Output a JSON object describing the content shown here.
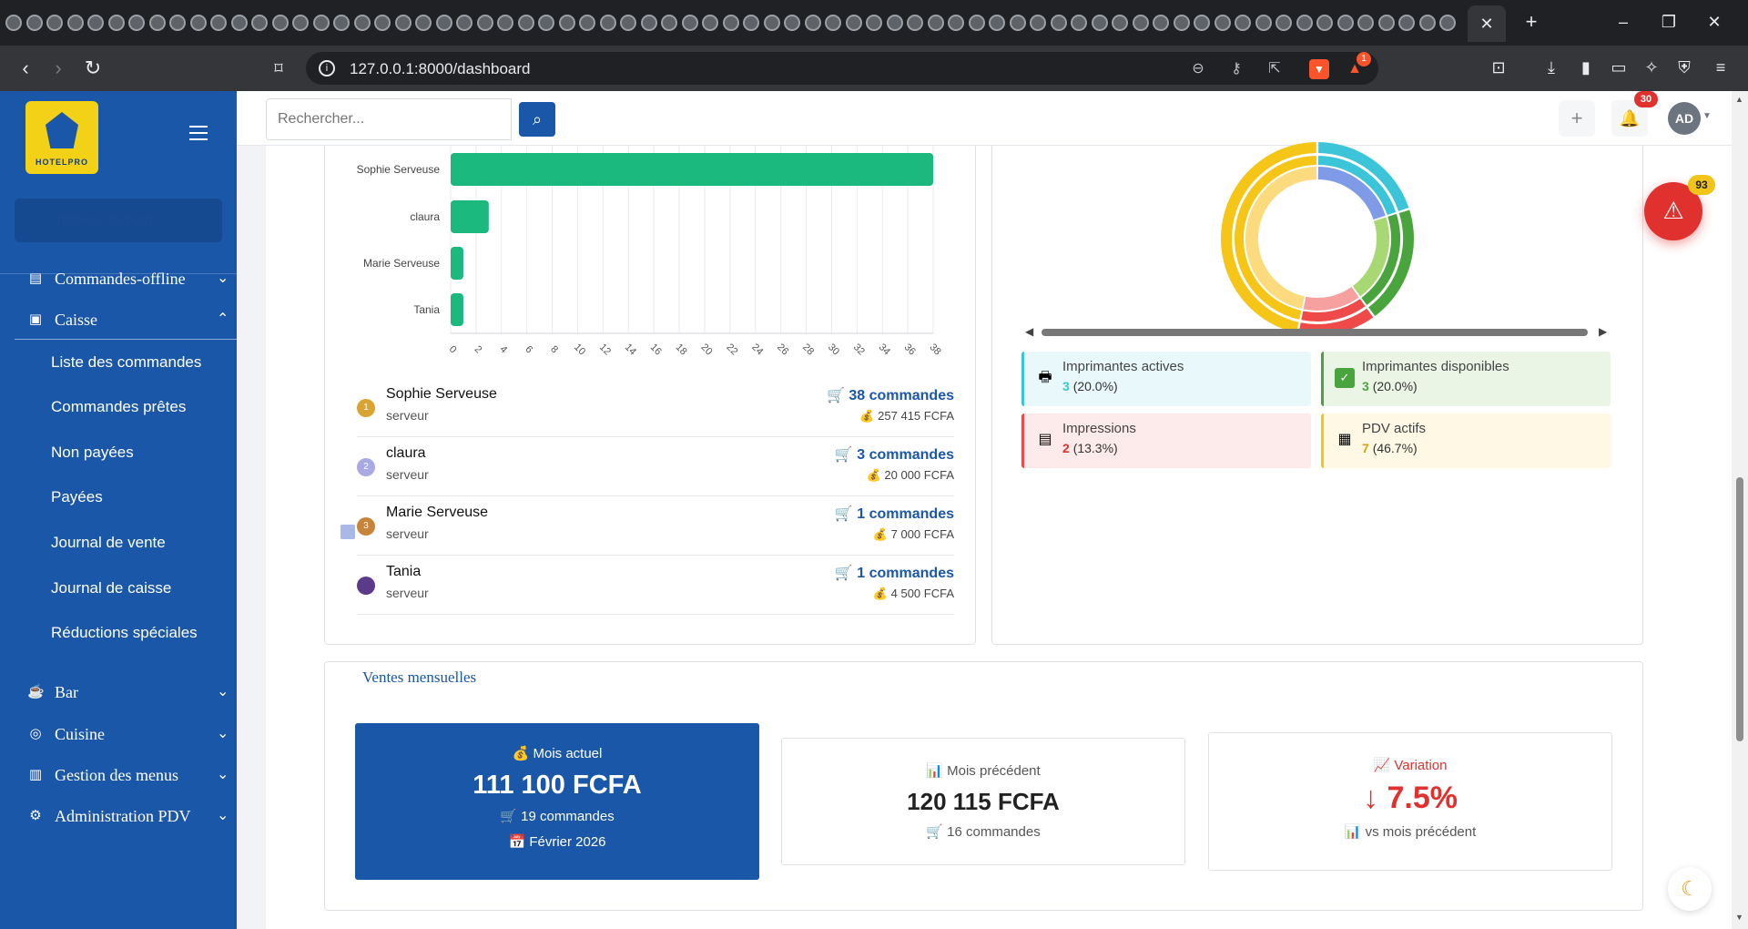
{
  "browser": {
    "url": "127.0.0.1:8000/dashboard",
    "new_tab": "+",
    "close_tab": "✕",
    "brave_badge": "1"
  },
  "sidebar": {
    "logo_text": "HOTELPRO",
    "search_placeholder": "Tableau de bord",
    "items": [
      {
        "label": "Commandes-offline",
        "icon": "list-icon",
        "chevron": "⌄"
      },
      {
        "label": "Caisse",
        "icon": "cash-register-icon",
        "chevron": "⌃"
      },
      {
        "label": "Bar",
        "icon": "coffee-icon",
        "chevron": "⌄"
      },
      {
        "label": "Cuisine",
        "icon": "utensils-icon",
        "chevron": "⌄"
      },
      {
        "label": "Gestion des menus",
        "icon": "menu-book-icon",
        "chevron": "⌄"
      },
      {
        "label": "Administration PDV",
        "icon": "gear-icon",
        "chevron": "⌄"
      }
    ],
    "caisse_subitems": [
      "Liste des commandes",
      "Commandes prêtes",
      "Non payées",
      "Payées",
      "Journal de vente",
      "Journal de caisse",
      "Réductions spéciales"
    ]
  },
  "header": {
    "search_placeholder": "Rechercher...",
    "notification_count": "30",
    "avatar_initials": "AD"
  },
  "alert_fab": {
    "count": "93"
  },
  "ranking": [
    {
      "name": "Sophie Serveuse",
      "role": "serveur",
      "orders": "38 commandes",
      "amount": "257 415 FCFA",
      "medal": "1",
      "medal_color": "#d9a431"
    },
    {
      "name": "claura",
      "role": "serveur",
      "orders": "3 commandes",
      "amount": "20 000 FCFA",
      "medal": "2",
      "medal_color": "#a9a9e6"
    },
    {
      "name": "Marie Serveuse",
      "role": "serveur",
      "orders": "1 commandes",
      "amount": "7 000 FCFA",
      "medal": "3",
      "medal_color": "#c8843a"
    },
    {
      "name": "Tania",
      "role": "serveur",
      "orders": "1 commandes",
      "amount": "4 500 FCFA",
      "medal": "",
      "medal_color": "#5b3a8c"
    }
  ],
  "chart_data": [
    {
      "type": "bar",
      "orientation": "horizontal",
      "categories": [
        "Sophie Serveuse",
        "claura",
        "Marie Serveuse",
        "Tania"
      ],
      "values": [
        38,
        3,
        1,
        1
      ],
      "xlim": [
        0,
        38
      ],
      "x_ticks": [
        0,
        2,
        4,
        6,
        8,
        10,
        12,
        14,
        16,
        18,
        20,
        22,
        24,
        26,
        28,
        30,
        32,
        34,
        36,
        38
      ],
      "grid": true,
      "color": "#1bb97e"
    },
    {
      "type": "pie",
      "style": "concentric-doughnut",
      "rings": [
        {
          "values": [
            20.0,
            20.0,
            13.3,
            46.7
          ]
        },
        {
          "values": [
            20.0,
            20.0,
            13.3,
            46.7
          ]
        },
        {
          "values": [
            20.0,
            20.0,
            13.3,
            46.7
          ]
        }
      ],
      "colors": [
        "#3cc5d8",
        "#4aa43d",
        "#ef4a4a",
        "#f5c518"
      ],
      "inner_colors": [
        "#7f9be8",
        "#a7d873",
        "#f7a0a0",
        "#fbdb7d"
      ]
    }
  ],
  "legend": [
    {
      "label": "Imprimantes actives",
      "value": "3",
      "pct": "(20.0%)",
      "icon": "printer-icon",
      "bg": "#e9f8fa",
      "border": "#3cc5d8",
      "num_color": "#3cc5d8"
    },
    {
      "label": "Imprimantes disponibles",
      "value": "3",
      "pct": "(20.0%)",
      "icon": "check-square-icon",
      "bg": "#eaf5e6",
      "border": "#4aa43d",
      "num_color": "#4aa43d"
    },
    {
      "label": "Impressions",
      "value": "2",
      "pct": "(13.3%)",
      "icon": "document-icon",
      "bg": "#fdeaea",
      "border": "#ef4a4a",
      "num_color": "#e0312f"
    },
    {
      "label": "PDV actifs",
      "value": "7",
      "pct": "(46.7%)",
      "icon": "store-icon",
      "bg": "#fef8e4",
      "border": "#f5c518",
      "num_color": "#d4a40e"
    }
  ],
  "monthly": {
    "title": "Ventes mensuelles",
    "current": {
      "label": "Mois actuel",
      "value": "111 100 FCFA",
      "orders": "19 commandes",
      "month": "Février 2026"
    },
    "previous": {
      "label": "Mois précédent",
      "value": "120 115 FCFA",
      "orders": "16 commandes"
    },
    "variation": {
      "label": "Variation",
      "value": "↓ 7.5%",
      "sub": "vs mois précédent"
    }
  }
}
